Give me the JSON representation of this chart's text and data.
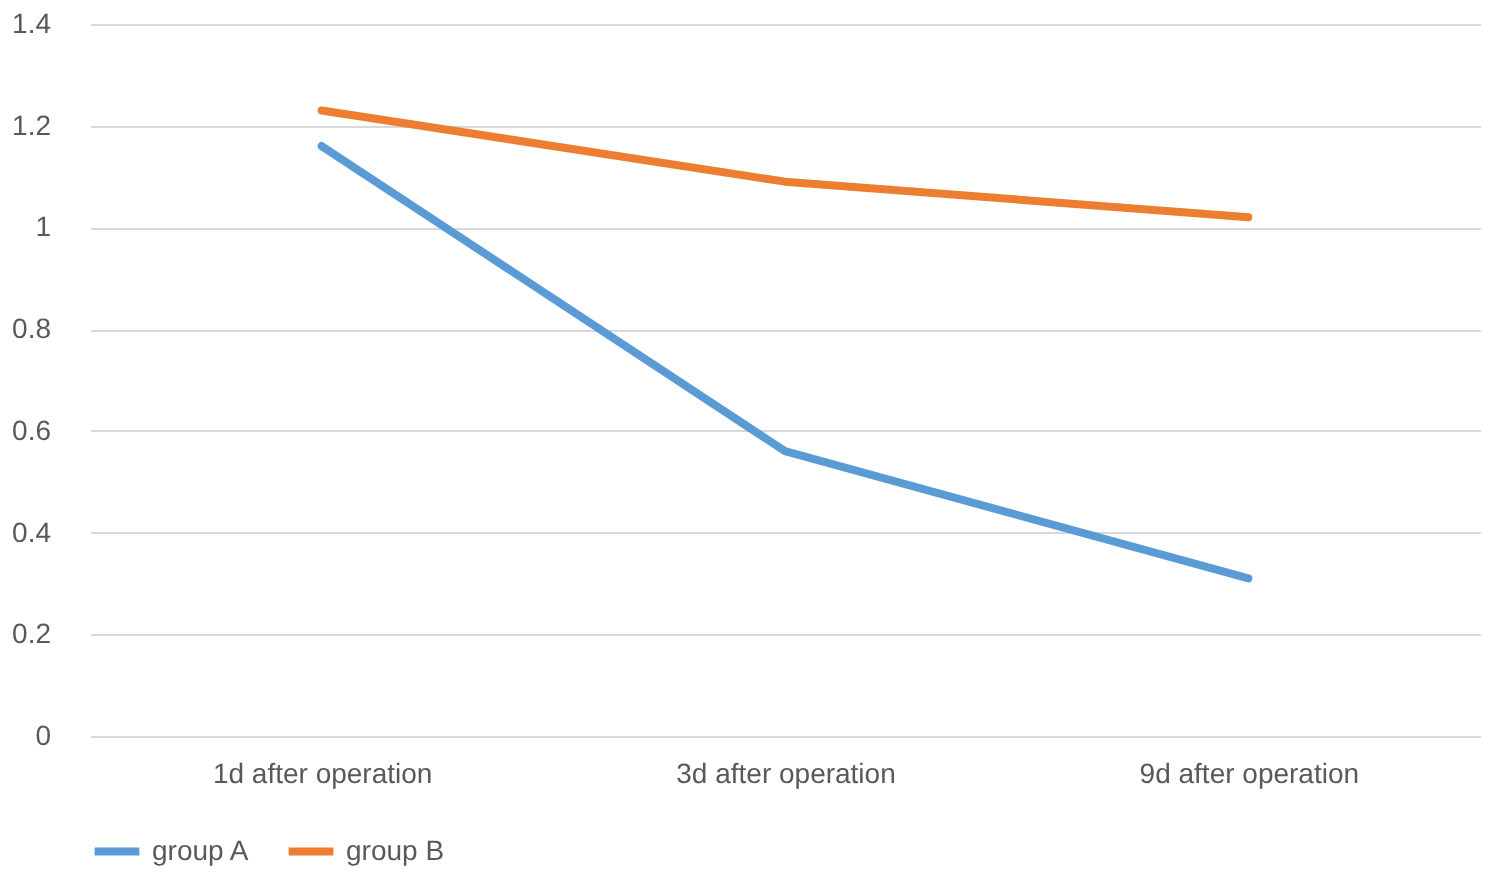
{
  "chart_data": {
    "type": "line",
    "categories": [
      "1d after operation",
      "3d after operation",
      "9d after operation"
    ],
    "series": [
      {
        "name": "group A",
        "color": "#5b9bd5",
        "values": [
          1.16,
          0.56,
          0.31
        ]
      },
      {
        "name": "group B",
        "color": "#ed7d31",
        "values": [
          1.23,
          1.09,
          1.02
        ]
      }
    ],
    "ylim": [
      0,
      1.4
    ],
    "yticks": [
      0,
      0.2,
      0.4,
      0.6,
      0.8,
      1,
      1.2,
      1.4
    ],
    "grid": "y",
    "legend": "bottom",
    "marker": "none",
    "line_style": "solid"
  }
}
